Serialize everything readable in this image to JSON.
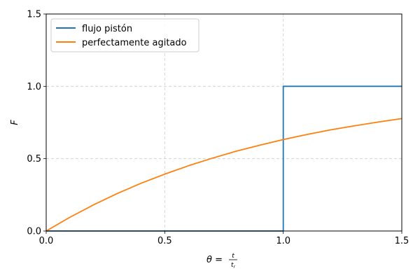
{
  "chart_data": {
    "type": "line",
    "title": "",
    "xlabel": {
      "main": "θ = ",
      "num": "t",
      "den_base": "t",
      "den_sub": "r"
    },
    "ylabel": "F",
    "xlim": [
      0,
      1.5
    ],
    "ylim": [
      0,
      1.5
    ],
    "xticks": [
      0,
      0.5,
      1.0,
      1.5
    ],
    "xtick_labels": [
      "0.0",
      "0.5",
      "1.0",
      "1.5"
    ],
    "yticks": [
      0,
      0.5,
      1.0,
      1.5
    ],
    "ytick_labels": [
      "0.0",
      "0.5",
      "1.0",
      "1.5"
    ],
    "grid": true,
    "legend_position": "top-left",
    "series": [
      {
        "name": "flujo pistón",
        "color": "#1f77b4",
        "x": [
          0,
          1.0,
          1.0,
          1.5
        ],
        "y": [
          0,
          0,
          1.0,
          1.0
        ]
      },
      {
        "name": "perfectamente agitado",
        "color": "#ff7f0e",
        "x": [
          0,
          0.1,
          0.2,
          0.3,
          0.4,
          0.5,
          0.6,
          0.7,
          0.8,
          0.9,
          1.0,
          1.1,
          1.2,
          1.3,
          1.4,
          1.5
        ],
        "y": [
          0,
          0.095,
          0.181,
          0.259,
          0.33,
          0.393,
          0.451,
          0.503,
          0.551,
          0.593,
          0.632,
          0.667,
          0.699,
          0.727,
          0.753,
          0.777
        ]
      }
    ]
  }
}
